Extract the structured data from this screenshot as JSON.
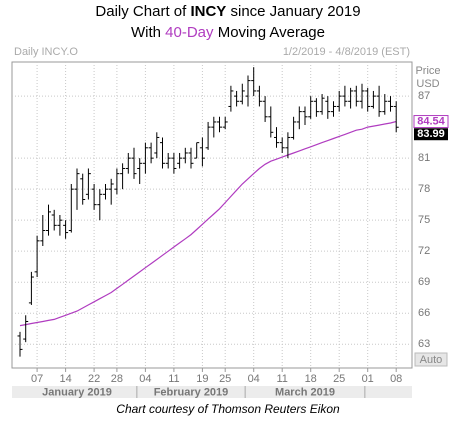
{
  "chart_data": {
    "type": "ohlc",
    "title_parts": [
      "Daily Chart of ",
      "INCY",
      " since January 2019"
    ],
    "subtitle_parts": [
      "With ",
      "40-Day",
      " Moving Average"
    ],
    "instrument": "Daily INCY.O",
    "date_range": "1/2/2019 - 4/8/2019 (EST)",
    "y_axis_label": [
      "Price",
      "USD"
    ],
    "scale_mode": "Auto",
    "source": "Chart courtesy of Thomson Reuters Eikon",
    "x": [
      "2019-01-02",
      "2019-01-03",
      "2019-01-04",
      "2019-01-07",
      "2019-01-08",
      "2019-01-09",
      "2019-01-10",
      "2019-01-11",
      "2019-01-14",
      "2019-01-15",
      "2019-01-16",
      "2019-01-17",
      "2019-01-18",
      "2019-01-22",
      "2019-01-23",
      "2019-01-24",
      "2019-01-25",
      "2019-01-28",
      "2019-01-29",
      "2019-01-30",
      "2019-01-31",
      "2019-02-01",
      "2019-02-04",
      "2019-02-05",
      "2019-02-06",
      "2019-02-07",
      "2019-02-08",
      "2019-02-11",
      "2019-02-12",
      "2019-02-13",
      "2019-02-14",
      "2019-02-15",
      "2019-02-19",
      "2019-02-20",
      "2019-02-21",
      "2019-02-22",
      "2019-02-25",
      "2019-02-26",
      "2019-02-27",
      "2019-02-28",
      "2019-03-01",
      "2019-03-04",
      "2019-03-05",
      "2019-03-06",
      "2019-03-07",
      "2019-03-08",
      "2019-03-11",
      "2019-03-12",
      "2019-03-13",
      "2019-03-14",
      "2019-03-15",
      "2019-03-18",
      "2019-03-19",
      "2019-03-20",
      "2019-03-21",
      "2019-03-22",
      "2019-03-25",
      "2019-03-26",
      "2019-03-27",
      "2019-03-28",
      "2019-03-29",
      "2019-04-01",
      "2019-04-02",
      "2019-04-03",
      "2019-04-04",
      "2019-04-05",
      "2019-04-08"
    ],
    "open": [
      63.8,
      63.5,
      67,
      70,
      73,
      74,
      75.5,
      74.5,
      74.5,
      74,
      78,
      79,
      77.5,
      78,
      76.5,
      77.5,
      78,
      78,
      79.5,
      80,
      81,
      80,
      80.5,
      82,
      81.5,
      82.5,
      80.5,
      81,
      80.5,
      81,
      81.5,
      81,
      82,
      82,
      84,
      84.5,
      84,
      86,
      87,
      86.5,
      87,
      88.5,
      87.5,
      86.5,
      85,
      83,
      82.5,
      82,
      83,
      84.5,
      85.5,
      85,
      86.5,
      85.5,
      86.5,
      85.5,
      86,
      87,
      86.5,
      87.5,
      86.5,
      87.5,
      86,
      87,
      85.5,
      86.5,
      86
    ],
    "high": [
      64.2,
      65.8,
      70,
      73.5,
      75.5,
      76.5,
      76,
      75.5,
      75,
      78.5,
      80,
      79.5,
      80,
      78.5,
      78,
      78.5,
      79,
      80,
      80.5,
      81.5,
      82,
      81,
      82.5,
      82.5,
      83.5,
      83,
      81.5,
      81.5,
      81.5,
      82,
      82,
      82.5,
      83,
      84.5,
      85,
      85,
      85,
      88,
      87.5,
      88.2,
      89,
      89.8,
      88,
      87,
      86,
      84,
      83,
      83.5,
      85,
      86,
      86,
      87,
      86.8,
      87.2,
      87,
      86.5,
      87.5,
      88,
      87.8,
      88,
      88.2,
      87.8,
      87.5,
      88,
      87.2,
      87,
      86.5
    ],
    "low": [
      61.8,
      63.2,
      66.8,
      69.5,
      72.5,
      73.5,
      74,
      73.5,
      73.2,
      73.8,
      76,
      76.5,
      77,
      76,
      75,
      77,
      76.5,
      77.5,
      78,
      79.5,
      79,
      78.5,
      79.5,
      80.5,
      81,
      80,
      80,
      79.5,
      80,
      80.5,
      80,
      81,
      80.2,
      81.8,
      83,
      83.5,
      83.8,
      85.5,
      86,
      86.2,
      86,
      87,
      86,
      84.5,
      83,
      82,
      81.5,
      81,
      82.8,
      83.8,
      84.2,
      84.8,
      85,
      85.2,
      84.8,
      85,
      85.5,
      86,
      85.8,
      86,
      85.8,
      85.5,
      85.8,
      85,
      85.2,
      85.5,
      83.5
    ],
    "close": [
      62.5,
      65.2,
      69.5,
      73,
      74,
      75.8,
      74.5,
      75,
      73.8,
      78,
      79.5,
      77,
      79.5,
      76.5,
      77.5,
      78,
      78.5,
      79.5,
      80,
      81,
      79.5,
      80.5,
      82,
      81,
      83,
      80.5,
      81,
      80,
      81,
      81.5,
      80.5,
      82.5,
      81,
      84,
      84.5,
      84,
      84.5,
      87.5,
      86.5,
      87.5,
      88.5,
      87.5,
      86.5,
      85,
      83.5,
      82.5,
      82,
      83,
      84.5,
      85.5,
      85,
      86.5,
      85.5,
      86.8,
      85.5,
      86,
      87,
      86.5,
      87.5,
      86.5,
      87.5,
      86,
      87,
      85.5,
      86.5,
      86,
      83.99
    ],
    "color": "#000000",
    "moving_average": {
      "color": "#b03cc0",
      "values": [
        64.8,
        64.9,
        65.0,
        65.1,
        65.2,
        65.3,
        65.4,
        65.6,
        65.8,
        66.0,
        66.2,
        66.5,
        66.8,
        67.1,
        67.4,
        67.7,
        68.0,
        68.4,
        68.8,
        69.2,
        69.6,
        70.0,
        70.4,
        70.8,
        71.2,
        71.6,
        72.0,
        72.4,
        72.8,
        73.2,
        73.6,
        74.1,
        74.6,
        75.1,
        75.6,
        76.1,
        76.7,
        77.3,
        77.9,
        78.5,
        79.0,
        79.5,
        80.0,
        80.4,
        80.7,
        80.9,
        81.1,
        81.3,
        81.5,
        81.7,
        81.9,
        82.1,
        82.3,
        82.5,
        82.7,
        82.9,
        83.1,
        83.3,
        83.5,
        83.7,
        83.8,
        84.0,
        84.1,
        84.2,
        84.3,
        84.4,
        84.54
      ]
    },
    "ylim": [
      60.7,
      90.3
    ],
    "yticks": [
      63,
      66,
      69,
      72,
      75,
      78,
      81,
      87
    ],
    "xticks": [
      {
        "value": "2019-01-07",
        "label": "07"
      },
      {
        "value": "2019-01-14",
        "label": "14"
      },
      {
        "value": "2019-01-22",
        "label": "22"
      },
      {
        "value": "2019-01-28",
        "label": "28"
      },
      {
        "value": "2019-02-04",
        "label": "04"
      },
      {
        "value": "2019-02-11",
        "label": "11"
      },
      {
        "value": "2019-02-19",
        "label": "19"
      },
      {
        "value": "2019-02-25",
        "label": "25"
      },
      {
        "value": "2019-03-04",
        "label": "04"
      },
      {
        "value": "2019-03-11",
        "label": "11"
      },
      {
        "value": "2019-03-18",
        "label": "18"
      },
      {
        "value": "2019-03-25",
        "label": "25"
      },
      {
        "value": "2019-04-01",
        "label": "01"
      },
      {
        "value": "2019-04-08",
        "label": "08"
      }
    ],
    "month_labels": [
      "January 2019",
      "February 2019",
      "March 2019"
    ],
    "grid": true
  }
}
